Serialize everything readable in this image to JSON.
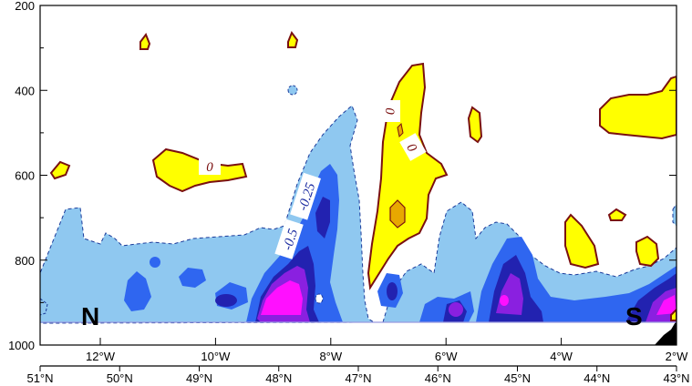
{
  "chart_data": {
    "type": "contour",
    "title": "",
    "xlabel": "",
    "ylabel": "",
    "y_axis": {
      "ticks": [
        200,
        400,
        600,
        800,
        1000
      ],
      "range": [
        200,
        1000
      ],
      "inverted": true
    },
    "x_axis_lon": {
      "ticks": [
        "12°W",
        "10°W",
        "8°W",
        "6°W",
        "4°W",
        "2°W"
      ]
    },
    "x_axis_lat": {
      "ticks": [
        "51°N",
        "50°N",
        "49°N",
        "48°N",
        "47°N",
        "46°N",
        "45°N",
        "44°N",
        "43°N"
      ]
    },
    "section_ends": {
      "left": "N",
      "right": "S"
    },
    "contour_labels": [
      "0",
      "0",
      "0",
      "-0.5",
      "-0.25"
    ],
    "fill_colors": {
      "positive": "#ffff00",
      "positive_inner": "#e8a800",
      "neg_light": "#8fc8f0",
      "neg_medium": "#2f66f0",
      "neg_dark": "#2222b0",
      "neg_purple": "#8a20e0",
      "neg_magenta": "#ff10ff",
      "positive_line": "#7a1010"
    }
  }
}
